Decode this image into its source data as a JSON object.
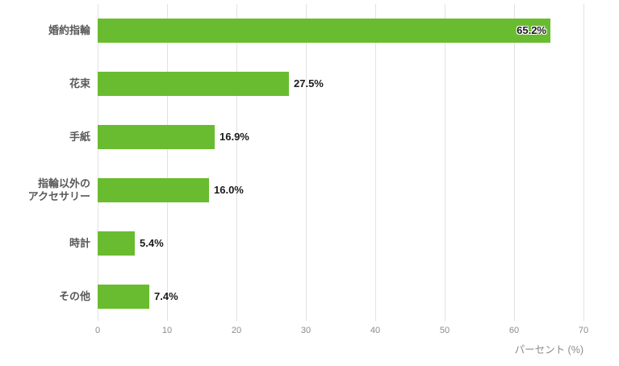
{
  "chart_data": {
    "type": "bar",
    "orientation": "horizontal",
    "title": "",
    "categories": [
      "婚約指輪",
      "花束",
      "手紙",
      "指輪以外の\nアクセサリー",
      "時計",
      "その他"
    ],
    "values": [
      65.2,
      27.5,
      16.9,
      16.0,
      5.4,
      7.4
    ],
    "value_labels": [
      "65.2%",
      "27.5%",
      "16.9%",
      "16.0%",
      "5.4%",
      "7.4%"
    ],
    "label_inside": [
      true,
      false,
      false,
      false,
      false,
      false
    ],
    "xticks": [
      0,
      10,
      20,
      30,
      40,
      50,
      60,
      70
    ],
    "xtick_labels": [
      "0",
      "10",
      "20",
      "30",
      "40",
      "50",
      "60",
      "70"
    ],
    "xlim": [
      0,
      72.5
    ],
    "xlabel": "パーセント (%)",
    "ylabel": "",
    "grid": true,
    "legend": false,
    "colors": {
      "bar": "#69bc2f",
      "grid_line": "#e2e2e2",
      "tick_label": "#8c8c8c",
      "category_label": "#595959",
      "value_label": "#1a1a1a",
      "background": "#ffffff"
    }
  }
}
